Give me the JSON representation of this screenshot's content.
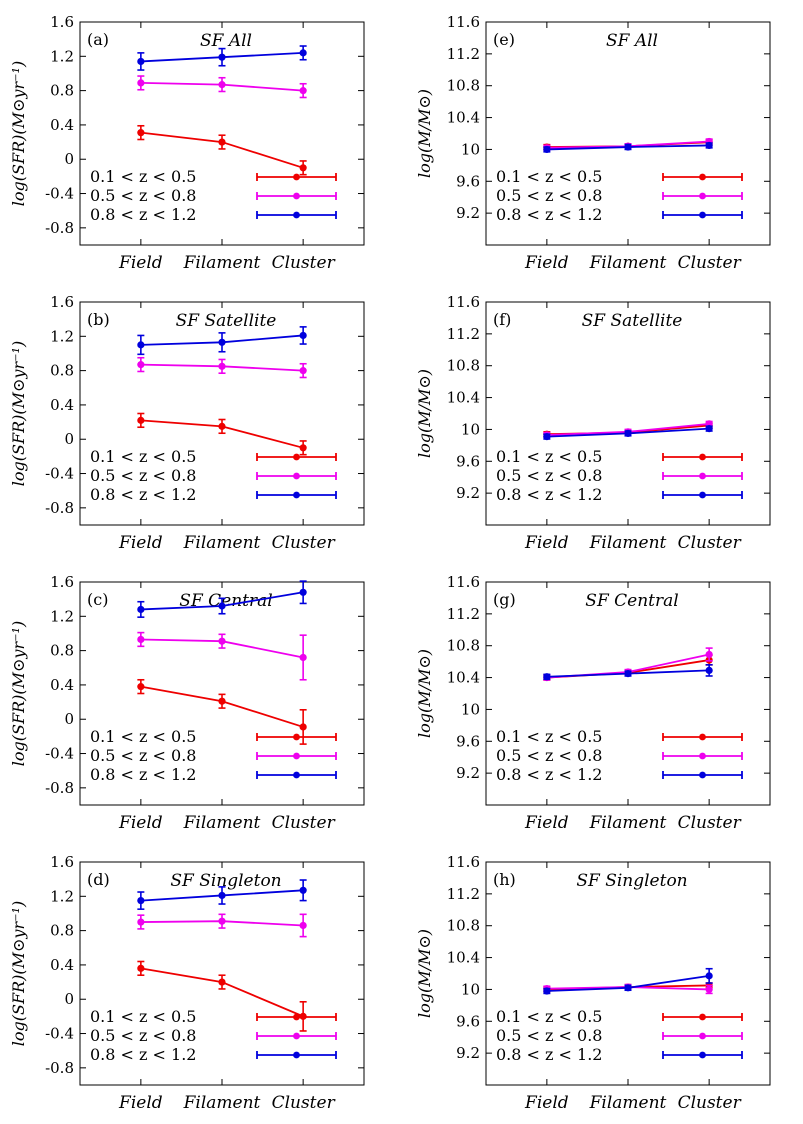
{
  "colors": {
    "0.1 < z < 0.5": "#ee0000",
    "0.5 < z < 0.8": "#ee00ee",
    "0.8 < z < 1.2": "#0000dd"
  },
  "legend": [
    "0.1 < z < 0.5",
    "0.5 < z < 0.8",
    "0.8 < z < 1.2"
  ],
  "chart_data": [
    {
      "type": "line",
      "panel": "(a)",
      "title": "SF All",
      "ylabel": "log(SFR)(M⊙yr⁻¹)",
      "xlabel": "",
      "categories": [
        "Field",
        "Filament",
        "Cluster"
      ],
      "ylim": [
        -1.0,
        1.6
      ],
      "yticks": [
        "-0.8",
        "-0.4",
        "0",
        "0.4",
        "0.8",
        "1.2",
        "1.6"
      ],
      "series": [
        {
          "name": "0.1 < z < 0.5",
          "values": [
            0.31,
            0.2,
            -0.1
          ],
          "errors": [
            0.08,
            0.08,
            0.08
          ]
        },
        {
          "name": "0.5 < z < 0.8",
          "values": [
            0.89,
            0.87,
            0.8
          ],
          "errors": [
            0.08,
            0.08,
            0.08
          ]
        },
        {
          "name": "0.8 < z < 1.2",
          "values": [
            1.14,
            1.19,
            1.24
          ],
          "errors": [
            0.1,
            0.1,
            0.08
          ]
        }
      ]
    },
    {
      "type": "line",
      "panel": "(e)",
      "title": "SF All",
      "ylabel": "log(M/M⊙)",
      "xlabel": "",
      "categories": [
        "Field",
        "Filament",
        "Cluster"
      ],
      "ylim": [
        8.8,
        11.6
      ],
      "yticks": [
        "9.2",
        "9.6",
        "10",
        "10.4",
        "10.8",
        "11.2",
        "11.6"
      ],
      "series": [
        {
          "name": "0.1 < z < 0.5",
          "values": [
            10.03,
            10.04,
            10.09
          ],
          "errors": [
            0.03,
            0.03,
            0.03
          ]
        },
        {
          "name": "0.5 < z < 0.8",
          "values": [
            10.02,
            10.04,
            10.1
          ],
          "errors": [
            0.03,
            0.03,
            0.03
          ]
        },
        {
          "name": "0.8 < z < 1.2",
          "values": [
            10.0,
            10.03,
            10.05
          ],
          "errors": [
            0.03,
            0.03,
            0.03
          ]
        }
      ]
    },
    {
      "type": "line",
      "panel": "(b)",
      "title": "SF Satellite",
      "ylabel": "log(SFR)(M⊙yr⁻¹)",
      "xlabel": "",
      "categories": [
        "Field",
        "Filament",
        "Cluster"
      ],
      "ylim": [
        -1.0,
        1.6
      ],
      "yticks": [
        "-0.8",
        "-0.4",
        "0",
        "0.4",
        "0.8",
        "1.2",
        "1.6"
      ],
      "series": [
        {
          "name": "0.1 < z < 0.5",
          "values": [
            0.22,
            0.15,
            -0.1
          ],
          "errors": [
            0.08,
            0.08,
            0.08
          ]
        },
        {
          "name": "0.5 < z < 0.8",
          "values": [
            0.87,
            0.85,
            0.8
          ],
          "errors": [
            0.08,
            0.08,
            0.08
          ]
        },
        {
          "name": "0.8 < z < 1.2",
          "values": [
            1.1,
            1.13,
            1.21
          ],
          "errors": [
            0.11,
            0.11,
            0.1
          ]
        }
      ]
    },
    {
      "type": "line",
      "panel": "(f)",
      "title": "SF Satellite",
      "ylabel": "log(M/M⊙)",
      "xlabel": "",
      "categories": [
        "Field",
        "Filament",
        "Cluster"
      ],
      "ylim": [
        8.8,
        11.6
      ],
      "yticks": [
        "9.2",
        "9.6",
        "10",
        "10.4",
        "10.8",
        "11.2",
        "11.6"
      ],
      "series": [
        {
          "name": "0.1 < z < 0.5",
          "values": [
            9.94,
            9.96,
            10.05
          ],
          "errors": [
            0.03,
            0.03,
            0.03
          ]
        },
        {
          "name": "0.5 < z < 0.8",
          "values": [
            9.93,
            9.97,
            10.07
          ],
          "errors": [
            0.03,
            0.03,
            0.03
          ]
        },
        {
          "name": "0.8 < z < 1.2",
          "values": [
            9.91,
            9.95,
            10.01
          ],
          "errors": [
            0.03,
            0.03,
            0.03
          ]
        }
      ]
    },
    {
      "type": "line",
      "panel": "(c)",
      "title": "SF Central",
      "ylabel": "log(SFR)(M⊙yr⁻¹)",
      "xlabel": "",
      "categories": [
        "Field",
        "Filament",
        "Cluster"
      ],
      "ylim": [
        -1.0,
        1.6
      ],
      "yticks": [
        "-0.8",
        "-0.4",
        "0",
        "0.4",
        "0.8",
        "1.2",
        "1.6"
      ],
      "series": [
        {
          "name": "0.1 < z < 0.5",
          "values": [
            0.38,
            0.21,
            -0.09
          ],
          "errors": [
            0.08,
            0.08,
            0.2
          ]
        },
        {
          "name": "0.5 < z < 0.8",
          "values": [
            0.93,
            0.91,
            0.72
          ],
          "errors": [
            0.08,
            0.08,
            0.26
          ]
        },
        {
          "name": "0.8 < z < 1.2",
          "values": [
            1.28,
            1.32,
            1.48
          ],
          "errors": [
            0.09,
            0.09,
            0.13
          ]
        }
      ]
    },
    {
      "type": "line",
      "panel": "(g)",
      "title": "SF Central",
      "ylabel": "log(M/M⊙)",
      "xlabel": "",
      "categories": [
        "Field",
        "Filament",
        "Cluster"
      ],
      "ylim": [
        8.8,
        11.6
      ],
      "yticks": [
        "9.2",
        "9.6",
        "10",
        "10.4",
        "10.8",
        "11.2",
        "11.6"
      ],
      "series": [
        {
          "name": "0.1 < z < 0.5",
          "values": [
            10.4,
            10.46,
            10.62
          ],
          "errors": [
            0.03,
            0.03,
            0.06
          ]
        },
        {
          "name": "0.5 < z < 0.8",
          "values": [
            10.4,
            10.47,
            10.69
          ],
          "errors": [
            0.03,
            0.03,
            0.08
          ]
        },
        {
          "name": "0.8 < z < 1.2",
          "values": [
            10.41,
            10.45,
            10.49
          ],
          "errors": [
            0.03,
            0.03,
            0.07
          ]
        }
      ]
    },
    {
      "type": "line",
      "panel": "(d)",
      "title": "SF Singleton",
      "ylabel": "log(SFR)(M⊙yr⁻¹)",
      "xlabel": "",
      "categories": [
        "Field",
        "Filament",
        "Cluster"
      ],
      "ylim": [
        -1.0,
        1.6
      ],
      "yticks": [
        "-0.8",
        "-0.4",
        "0",
        "0.4",
        "0.8",
        "1.2",
        "1.6"
      ],
      "series": [
        {
          "name": "0.1 < z < 0.5",
          "values": [
            0.36,
            0.2,
            -0.2
          ],
          "errors": [
            0.08,
            0.08,
            0.17
          ]
        },
        {
          "name": "0.5 < z < 0.8",
          "values": [
            0.9,
            0.91,
            0.86
          ],
          "errors": [
            0.08,
            0.08,
            0.13
          ]
        },
        {
          "name": "0.8 < z < 1.2",
          "values": [
            1.15,
            1.21,
            1.27
          ],
          "errors": [
            0.1,
            0.1,
            0.12
          ]
        }
      ]
    },
    {
      "type": "line",
      "panel": "(h)",
      "title": "SF Singleton",
      "ylabel": "log(M/M⊙)",
      "xlabel": "",
      "categories": [
        "Field",
        "Filament",
        "Cluster"
      ],
      "ylim": [
        8.8,
        11.6
      ],
      "yticks": [
        "9.2",
        "9.6",
        "10",
        "10.4",
        "10.8",
        "11.2",
        "11.6"
      ],
      "series": [
        {
          "name": "0.1 < z < 0.5",
          "values": [
            10.0,
            10.03,
            10.05
          ],
          "errors": [
            0.03,
            0.03,
            0.03
          ]
        },
        {
          "name": "0.5 < z < 0.8",
          "values": [
            10.01,
            10.03,
            10.0
          ],
          "errors": [
            0.03,
            0.03,
            0.05
          ]
        },
        {
          "name": "0.8 < z < 1.2",
          "values": [
            9.98,
            10.02,
            10.17
          ],
          "errors": [
            0.03,
            0.03,
            0.09
          ]
        }
      ]
    }
  ]
}
